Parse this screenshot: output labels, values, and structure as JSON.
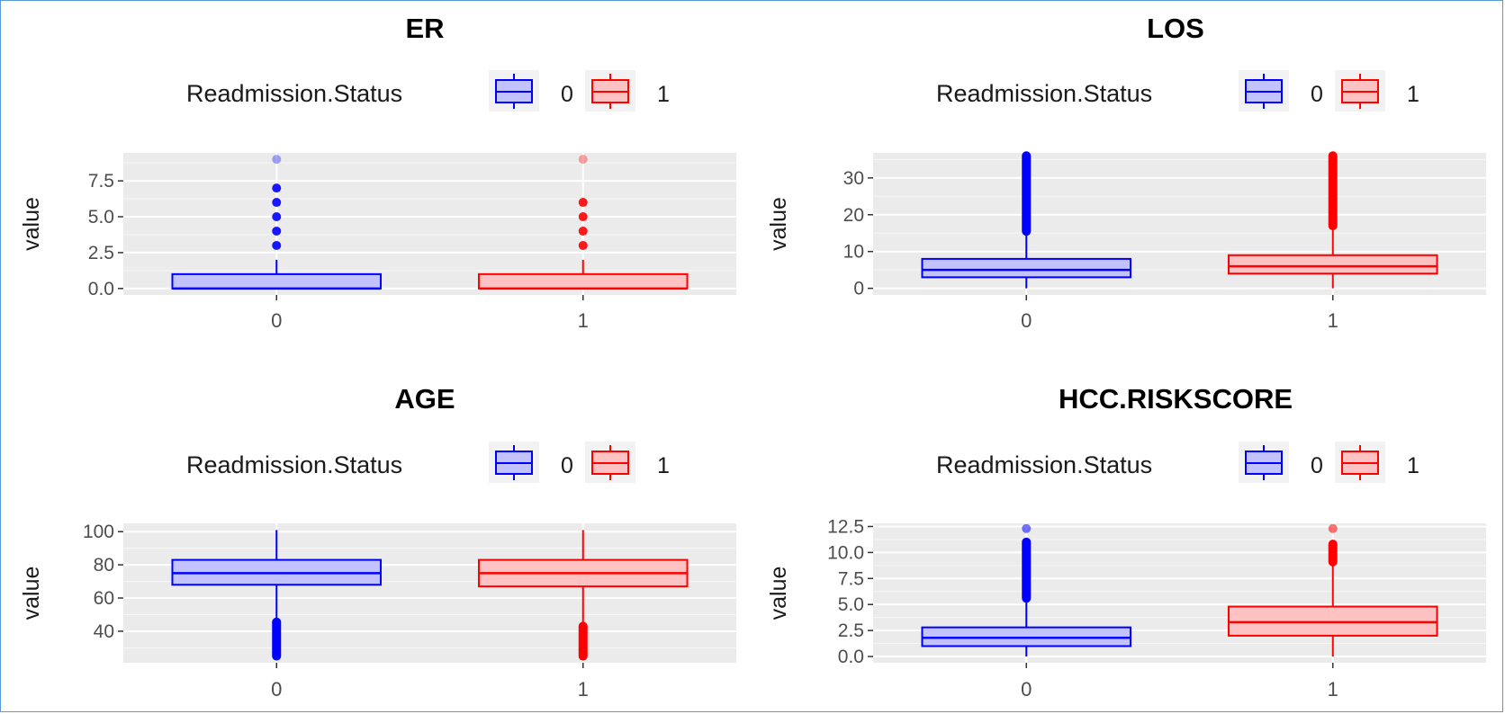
{
  "chart_data": [
    {
      "type": "box",
      "title": "ER",
      "ylabel": "value",
      "xlabel": "",
      "legend": {
        "title": "Readmission.Status",
        "entries": [
          "0",
          "1"
        ],
        "placement": "top"
      },
      "categories": [
        "0",
        "1"
      ],
      "yticks": [
        "0.0",
        "2.5",
        "5.0",
        "7.5"
      ],
      "ylim": [
        -0.45,
        9.45
      ],
      "grid": true,
      "series": [
        {
          "name": "0",
          "color": "#0000ff",
          "fill": "#c2c2ff",
          "min": 0,
          "q1": 0,
          "median": 0,
          "q3": 1,
          "max": 2,
          "outliers": [
            3,
            4,
            5,
            6,
            7,
            9
          ]
        },
        {
          "name": "1",
          "color": "#ff0000",
          "fill": "#ffc2c2",
          "min": 0,
          "q1": 0,
          "median": 0,
          "q3": 1,
          "max": 2,
          "outliers": [
            3,
            4,
            5,
            6,
            9
          ]
        }
      ]
    },
    {
      "type": "box",
      "title": "LOS",
      "ylabel": "value",
      "xlabel": "",
      "legend": {
        "title": "Readmission.Status",
        "entries": [
          "0",
          "1"
        ],
        "placement": "top"
      },
      "categories": [
        "0",
        "1"
      ],
      "yticks": [
        "0",
        "10",
        "20",
        "30"
      ],
      "ylim": [
        -1.8,
        36.8
      ],
      "grid": true,
      "series": [
        {
          "name": "0",
          "color": "#0000ff",
          "fill": "#c2c2ff",
          "min": 0,
          "q1": 3,
          "median": 5,
          "q3": 8,
          "max": 15,
          "outlier_range": [
            15.5,
            36
          ]
        },
        {
          "name": "1",
          "color": "#ff0000",
          "fill": "#ffc2c2",
          "min": 0,
          "q1": 4,
          "median": 6,
          "q3": 9,
          "max": 16.5,
          "outlier_range": [
            17,
            36
          ]
        }
      ]
    },
    {
      "type": "box",
      "title": "AGE",
      "ylabel": "value",
      "xlabel": "",
      "legend": {
        "title": "Readmission.Status",
        "entries": [
          "0",
          "1"
        ],
        "placement": "top"
      },
      "categories": [
        "0",
        "1"
      ],
      "yticks": [
        "40",
        "60",
        "80",
        "100"
      ],
      "ylim": [
        21,
        105
      ],
      "grid": true,
      "series": [
        {
          "name": "0",
          "color": "#0000ff",
          "fill": "#c2c2ff",
          "min": 46,
          "q1": 68,
          "median": 75,
          "q3": 83,
          "max": 101,
          "outlier_range": [
            25,
            45.5
          ]
        },
        {
          "name": "1",
          "color": "#ff0000",
          "fill": "#ffc2c2",
          "min": 44,
          "q1": 67,
          "median": 75,
          "q3": 83,
          "max": 101,
          "outlier_range": [
            25,
            43
          ]
        }
      ]
    },
    {
      "type": "box",
      "title": "HCC.RISKSCORE",
      "ylabel": "value",
      "xlabel": "",
      "legend": {
        "title": "Readmission.Status",
        "entries": [
          "0",
          "1"
        ],
        "placement": "top"
      },
      "categories": [
        "0",
        "1"
      ],
      "yticks": [
        "0.0",
        "2.5",
        "5.0",
        "7.5",
        "10.0",
        "12.5"
      ],
      "ylim": [
        -0.6,
        12.8
      ],
      "grid": true,
      "series": [
        {
          "name": "0",
          "color": "#0000ff",
          "fill": "#c2c2ff",
          "min": 0,
          "q1": 1,
          "median": 1.8,
          "q3": 2.8,
          "max": 5.5,
          "outlier_range": [
            5.6,
            11
          ],
          "outliers": [
            12.3
          ]
        },
        {
          "name": "1",
          "color": "#ff0000",
          "fill": "#ffc2c2",
          "min": 0,
          "q1": 2,
          "median": 3.3,
          "q3": 4.8,
          "max": 9,
          "outlier_range": [
            9.1,
            10.8
          ],
          "outliers": [
            12.3
          ]
        }
      ]
    }
  ]
}
